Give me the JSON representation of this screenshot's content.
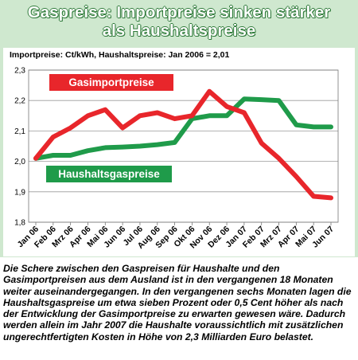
{
  "title_line1": "Gaspreise: Importpreise sinken stärker",
  "title_line2": "als Haushaltspreise",
  "caption": "Die Schere zwischen den Gaspreisen für Haushalte und den Gasimportpreisen aus dem Ausland ist in den vergangenen 18 Monaten weiter auseinandergegangen. In den vergangenen sechs Monaten lagen die Haushaltsgaspreise um etwa sieben Prozent oder 0,5 Cent höher als nach der Entwicklung der Gasimportpreise zu erwarten gewesen wäre. Dadurch werden allein im Jahr 2007 die Haushalte voraussichtlich mit zusätzlichen ungerechtfertigten Kosten in Höhe von 2,3 Milliarden Euro belastet.",
  "colors": {
    "import": "#e8262b",
    "household": "#1f9b4a",
    "frame": "#cfe8cf",
    "title_shadow": "#2f7a3a"
  },
  "chart_data": {
    "type": "line",
    "subtitle": "Importpreise: Ct/kWh, Haushaltspreise: Jan 2006 = 2,01",
    "categories": [
      "Jan 06",
      "Feb 06",
      "Mrz 06",
      "Apr 06",
      "Mai 06",
      "Jun 06",
      "Jul 06",
      "Aug 06",
      "Sep 06",
      "Okt 06",
      "Nov 06",
      "Dez 06",
      "Jan 07",
      "Feb 07",
      "Mrz 07",
      "Apr 07",
      "Mai 07",
      "Jun 07"
    ],
    "ylim": [
      1.8,
      2.3
    ],
    "yticks": [
      "1,8",
      "1,9",
      "2,0",
      "2,1",
      "2,2",
      "2,3"
    ],
    "ytick_values": [
      1.8,
      1.9,
      2.0,
      2.1,
      2.2,
      2.3
    ],
    "grid": true,
    "series": [
      {
        "name": "Gasimportpreise",
        "key": "import",
        "values": [
          2.01,
          2.08,
          2.11,
          2.15,
          2.17,
          2.11,
          2.15,
          2.16,
          2.14,
          2.15,
          2.23,
          2.18,
          2.16,
          2.06,
          2.01,
          1.95,
          1.885,
          1.88
        ]
      },
      {
        "name": "Haushaltsgaspreise",
        "key": "household",
        "values": [
          2.01,
          2.02,
          2.02,
          2.035,
          2.045,
          2.047,
          2.05,
          2.055,
          2.062,
          2.14,
          2.15,
          2.15,
          2.205,
          2.203,
          2.2,
          2.12,
          2.113,
          2.113
        ]
      }
    ]
  }
}
